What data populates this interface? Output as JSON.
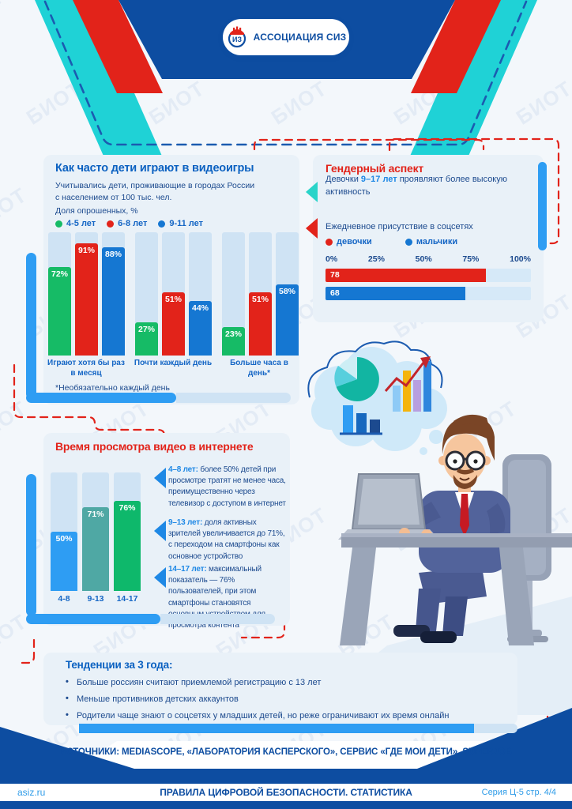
{
  "header": {
    "logo_text": "АССОЦИАЦИЯ СИЗ"
  },
  "watermark": "БИОТ",
  "colors": {
    "accent_blue": "#2e9df3",
    "navy": "#0d4da1",
    "red": "#e2231a",
    "green": "#16bb66",
    "bar_blue": "#1577d2",
    "teal_arrow": "#2ad4c9",
    "panel_bg": "#e9f1f8",
    "track_light": "#cfe3f4",
    "link_blue": "#2f9ce8"
  },
  "video_games": {
    "title": "Как часто дети играют в видеоигры",
    "subtitle": "Учитывались дети, проживающие в городах России\nс населением от 100 тыс. чел.",
    "share_label": "Доля опрошенных, %",
    "legend": [
      {
        "label": "4-5 лет",
        "color": "#16bb66"
      },
      {
        "label": "6-8 лет",
        "color": "#e2231a"
      },
      {
        "label": "9-11 лет",
        "color": "#1577d2"
      }
    ],
    "footnote": "*Необязательно каждый день"
  },
  "gender": {
    "title": "Гендерный аспект",
    "point1_prefix": "Девочки ",
    "point1_highlight": "9–17 лет",
    "point1_suffix": " проявляют более высокую активность",
    "point2": "Ежедневное присутствие в соцсетях",
    "legend": [
      {
        "label": "девочки",
        "color": "#e2231a"
      },
      {
        "label": "мальчики",
        "color": "#1577d2"
      }
    ]
  },
  "video_time": {
    "title": "Время просмотра видео в интернете",
    "blocks": [
      {
        "age": "4–8 лет:",
        "text": " более 50% детей при просмотре тратят не менее часа, преимущественно через телевизор с доступом в интернет"
      },
      {
        "age": "9–13 лет:",
        "text": " доля активных зрителей увеличивается до 71%, с переходом на смартфоны как основное устройство"
      },
      {
        "age": "14–17 лет:",
        "text": " максимальный показатель — 76% пользователей, при этом смартфоны становятся основным устройством для просмотра контента"
      }
    ]
  },
  "trends": {
    "title": "Тенденции за 3 года:",
    "bullets": [
      "Больше россиян считают приемлемой регистрацию с 13 лет",
      "Меньше противников детских аккаунтов",
      "Родители чаще знают о соцсетях у младших детей, но реже ограничивают их время онлайн"
    ]
  },
  "footer": {
    "sources": "ИСТОЧНИКИ: MEDIASCOPE, «ЛАБОРАТОРИЯ КАСПЕРСКОГО», СЕРВИС «ГДЕ МОИ ДЕТИ», SUPERJOB",
    "site": "asiz.ru",
    "title": "ПРАВИЛА ЦИФРОВОЙ БЕЗОПАСНОСТИ. СТАТИСТИКА",
    "series": "Серия Ц-5 стр. 4/4"
  },
  "chart_data": [
    {
      "id": "videogames-frequency",
      "type": "bar",
      "title": "Как часто дети играют в видеоигры",
      "ylabel": "Доля опрошенных, %",
      "categories": [
        "Играют хотя бы раз\nв месяц",
        "Почти каждый день",
        "Больше часа в день*"
      ],
      "series": [
        {
          "name": "4-5 лет",
          "color": "#16bb66",
          "values": [
            72,
            27,
            23
          ]
        },
        {
          "name": "6-8 лет",
          "color": "#e2231a",
          "values": [
            91,
            51,
            51
          ]
        },
        {
          "name": "9-11 лет",
          "color": "#1577d2",
          "values": [
            88,
            44,
            58
          ]
        }
      ],
      "ylim": [
        0,
        100
      ],
      "unit": "%"
    },
    {
      "id": "daily-social-presence",
      "type": "bar",
      "orientation": "horizontal",
      "title": "Ежедневное присутствие в соцсетях",
      "categories": [
        "девочки",
        "мальчики"
      ],
      "values": [
        78,
        68
      ],
      "colors": [
        "#e2231a",
        "#1577d2"
      ],
      "xlim": [
        0,
        100
      ],
      "ticks": [
        "0%",
        "25%",
        "50%",
        "75%",
        "100%"
      ]
    },
    {
      "id": "video-watching-time",
      "type": "bar",
      "title": "Время просмотра видео в интернете",
      "categories": [
        "4-8",
        "9-13",
        "14-17"
      ],
      "values": [
        50,
        71,
        76
      ],
      "colors": [
        "#2e9df3",
        "#4fa8a4",
        "#0eb86b"
      ],
      "ylim": [
        0,
        100
      ],
      "unit": "%"
    }
  ]
}
